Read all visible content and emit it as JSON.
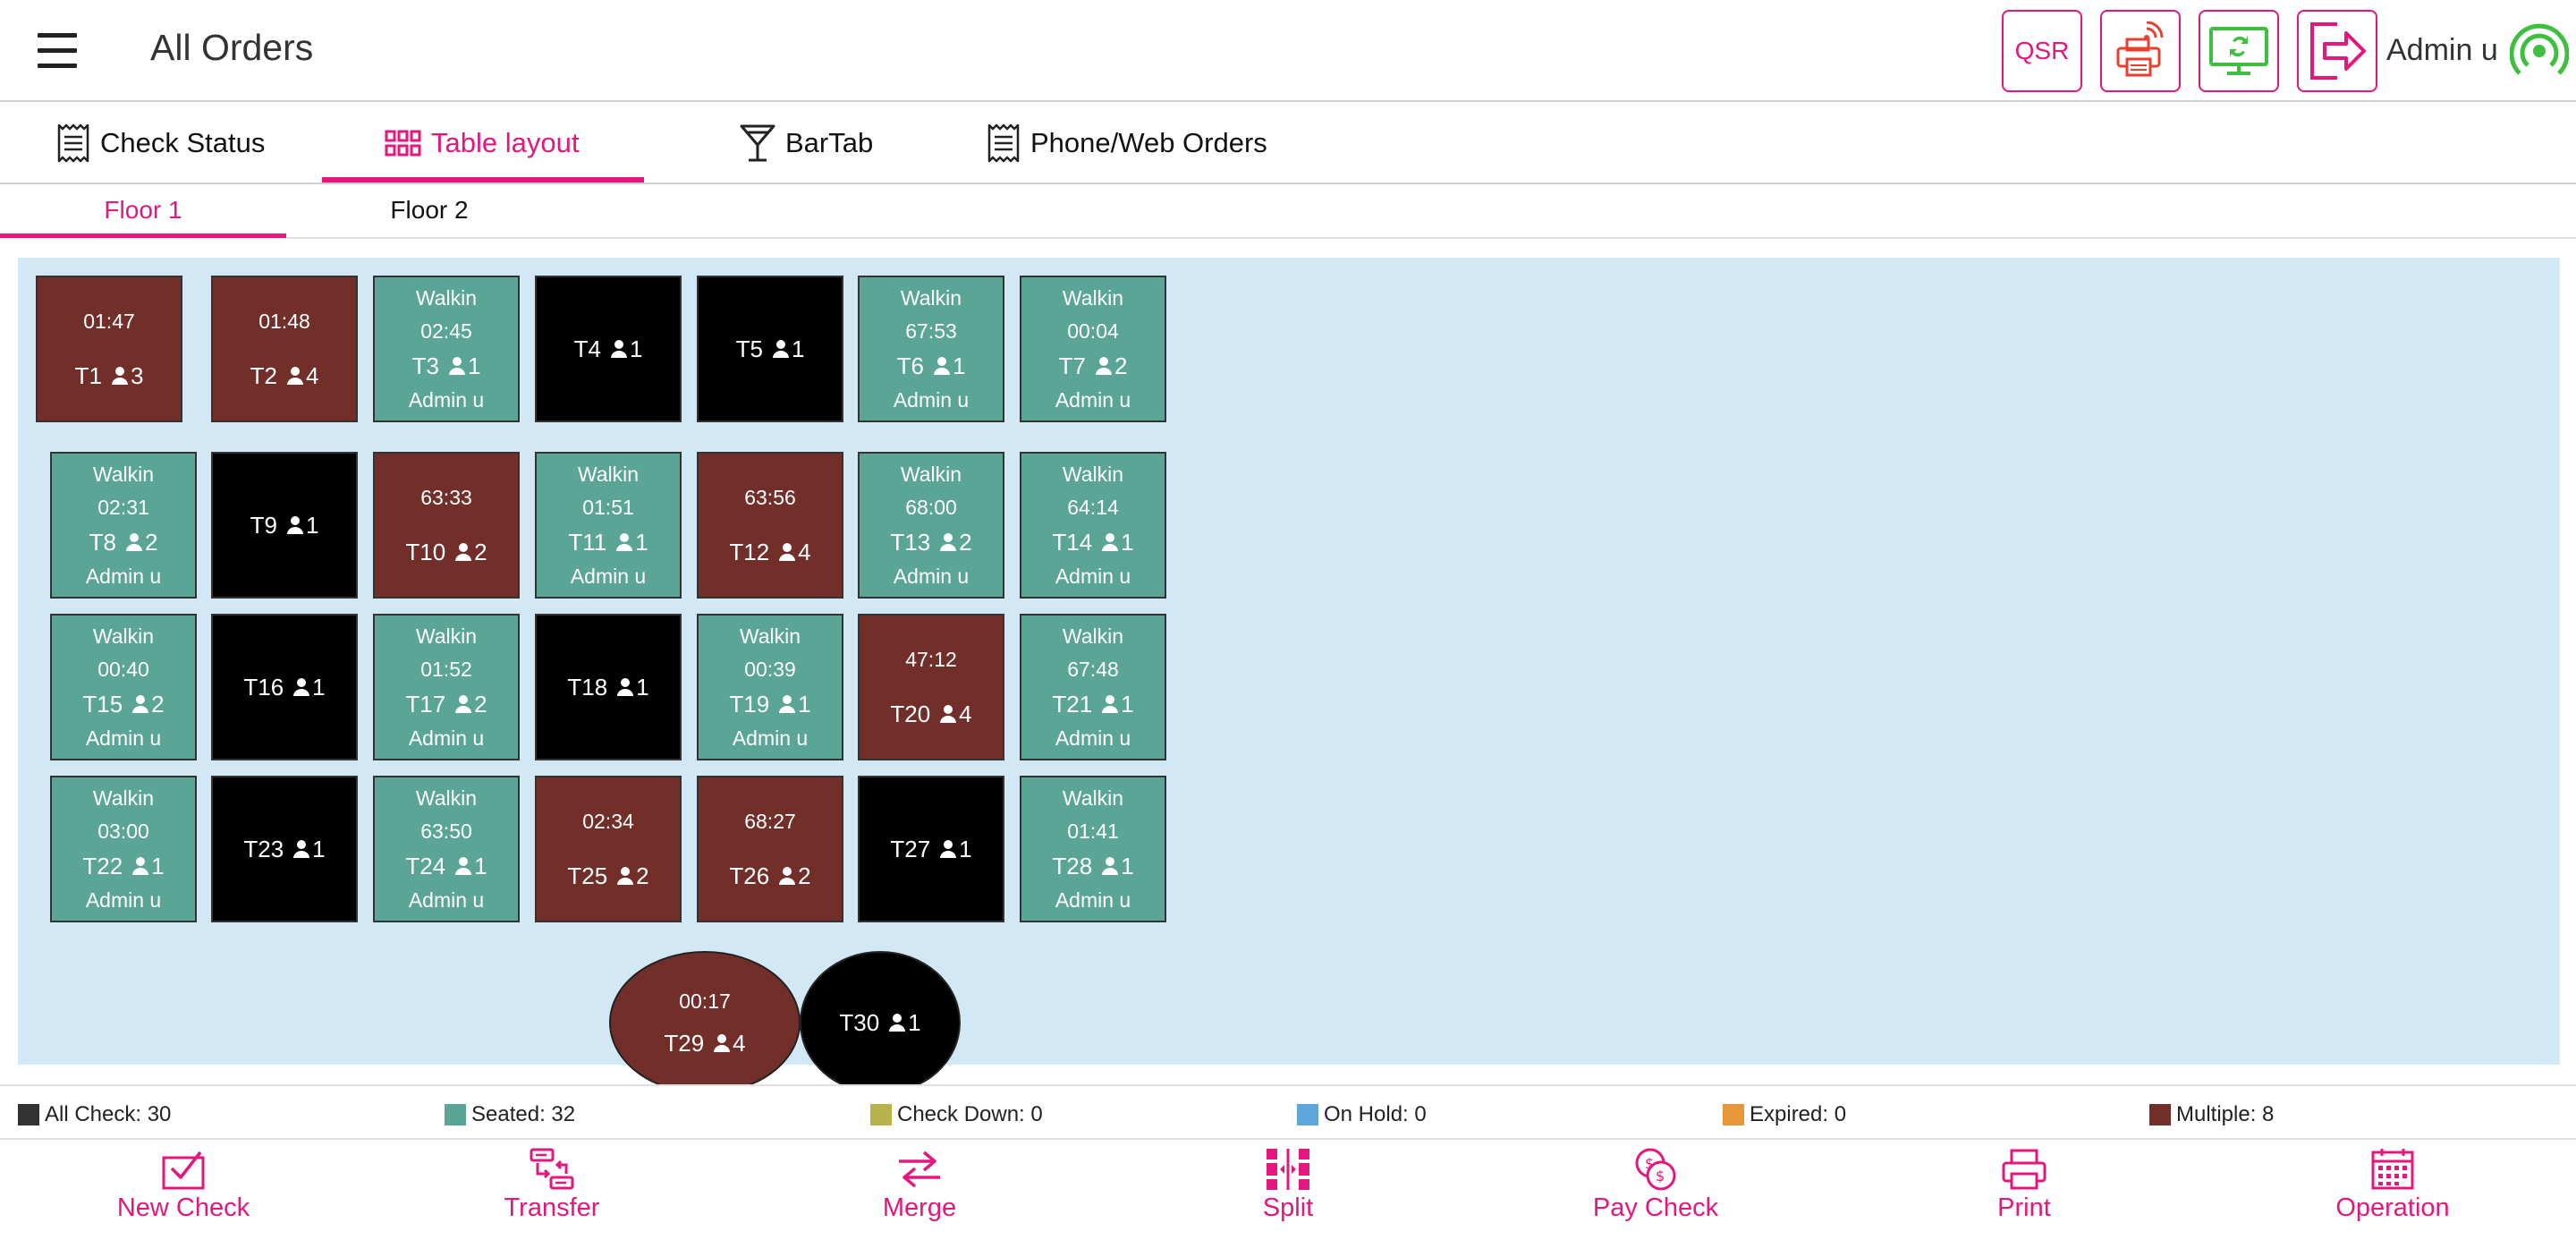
{
  "header": {
    "title": "All Orders",
    "qsr_label": "QSR",
    "user_name": "Admin u"
  },
  "tabs": [
    {
      "label": "Check Status",
      "icon": "receipt-icon"
    },
    {
      "label": "Table layout",
      "icon": "grid-icon",
      "active": true
    },
    {
      "label": "BarTab",
      "icon": "cocktail-glass-icon"
    },
    {
      "label": "Phone/Web Orders",
      "icon": "receipt-icon"
    }
  ],
  "floors": [
    {
      "label": "Floor 1",
      "active": true
    },
    {
      "label": "Floor 2"
    }
  ],
  "tables": {
    "T1": {
      "name": "T1",
      "time": "01:47",
      "guests": "3",
      "status": "multiple"
    },
    "T2": {
      "name": "T2",
      "time": "01:48",
      "guests": "4",
      "status": "multiple"
    },
    "T3": {
      "name": "T3",
      "label": "Walkin",
      "time": "02:45",
      "guests": "1",
      "server": "Admin u",
      "status": "seated"
    },
    "T4": {
      "name": "T4",
      "guests": "1",
      "status": "empty"
    },
    "T5": {
      "name": "T5",
      "guests": "1",
      "status": "empty"
    },
    "T6": {
      "name": "T6",
      "label": "Walkin",
      "time": "67:53",
      "guests": "1",
      "server": "Admin u",
      "status": "seated"
    },
    "T7": {
      "name": "T7",
      "label": "Walkin",
      "time": "00:04",
      "guests": "2",
      "server": "Admin u",
      "status": "seated"
    },
    "T8": {
      "name": "T8",
      "label": "Walkin",
      "time": "02:31",
      "guests": "2",
      "server": "Admin u",
      "status": "seated"
    },
    "T9": {
      "name": "T9",
      "guests": "1",
      "status": "empty"
    },
    "T10": {
      "name": "T10",
      "time": "63:33",
      "guests": "2",
      "status": "multiple"
    },
    "T11": {
      "name": "T11",
      "label": "Walkin",
      "time": "01:51",
      "guests": "1",
      "server": "Admin u",
      "status": "seated"
    },
    "T12": {
      "name": "T12",
      "time": "63:56",
      "guests": "4",
      "status": "multiple"
    },
    "T13": {
      "name": "T13",
      "label": "Walkin",
      "time": "68:00",
      "guests": "2",
      "server": "Admin u",
      "status": "seated"
    },
    "T14": {
      "name": "T14",
      "label": "Walkin",
      "time": "64:14",
      "guests": "1",
      "server": "Admin u",
      "status": "seated"
    },
    "T15": {
      "name": "T15",
      "label": "Walkin",
      "time": "00:40",
      "guests": "2",
      "server": "Admin u",
      "status": "seated"
    },
    "T16": {
      "name": "T16",
      "guests": "1",
      "status": "empty"
    },
    "T17": {
      "name": "T17",
      "label": "Walkin",
      "time": "01:52",
      "guests": "2",
      "server": "Admin u",
      "status": "seated"
    },
    "T18": {
      "name": "T18",
      "guests": "1",
      "status": "empty"
    },
    "T19": {
      "name": "T19",
      "label": "Walkin",
      "time": "00:39",
      "guests": "1",
      "server": "Admin u",
      "status": "seated"
    },
    "T20": {
      "name": "T20",
      "time": "47:12",
      "guests": "4",
      "status": "multiple"
    },
    "T21": {
      "name": "T21",
      "label": "Walkin",
      "time": "67:48",
      "guests": "1",
      "server": "Admin u",
      "status": "seated"
    },
    "T22": {
      "name": "T22",
      "label": "Walkin",
      "time": "03:00",
      "guests": "1",
      "server": "Admin u",
      "status": "seated"
    },
    "T23": {
      "name": "T23",
      "guests": "1",
      "status": "empty"
    },
    "T24": {
      "name": "T24",
      "label": "Walkin",
      "time": "63:50",
      "guests": "1",
      "server": "Admin u",
      "status": "seated"
    },
    "T25": {
      "name": "T25",
      "time": "02:34",
      "guests": "2",
      "status": "multiple"
    },
    "T26": {
      "name": "T26",
      "time": "68:27",
      "guests": "2",
      "status": "multiple"
    },
    "T27": {
      "name": "T27",
      "guests": "1",
      "status": "empty"
    },
    "T28": {
      "name": "T28",
      "label": "Walkin",
      "time": "01:41",
      "guests": "1",
      "server": "Admin u",
      "status": "seated"
    },
    "T29": {
      "name": "T29",
      "time": "00:17",
      "guests": "4",
      "status": "multiple",
      "shape": "round"
    },
    "T30": {
      "name": "T30",
      "guests": "1",
      "status": "empty",
      "shape": "round"
    }
  },
  "legend": [
    {
      "label": "All Check: 30",
      "color": "#333333"
    },
    {
      "label": "Seated: 32",
      "color": "#5aa596"
    },
    {
      "label": "Check Down: 0",
      "color": "#b7b34a"
    },
    {
      "label": "On Hold: 0",
      "color": "#5aa6dd"
    },
    {
      "label": "Expired: 0",
      "color": "#e8963a"
    },
    {
      "label": "Multiple: 8",
      "color": "#722f2a"
    }
  ],
  "toolbar": [
    {
      "label": "New Check",
      "icon": "new-check-icon"
    },
    {
      "label": "Transfer",
      "icon": "transfer-icon"
    },
    {
      "label": "Merge",
      "icon": "merge-icon"
    },
    {
      "label": "Split",
      "icon": "split-icon"
    },
    {
      "label": "Pay Check",
      "icon": "pay-check-icon"
    },
    {
      "label": "Print",
      "icon": "print-icon"
    },
    {
      "label": "Operation",
      "icon": "calendar-icon"
    }
  ],
  "colors": {
    "accent": "#e3177e",
    "seated": "#5aa596",
    "multiple": "#722f2a",
    "empty": "#000000",
    "canvas": "#d3e8f5"
  }
}
